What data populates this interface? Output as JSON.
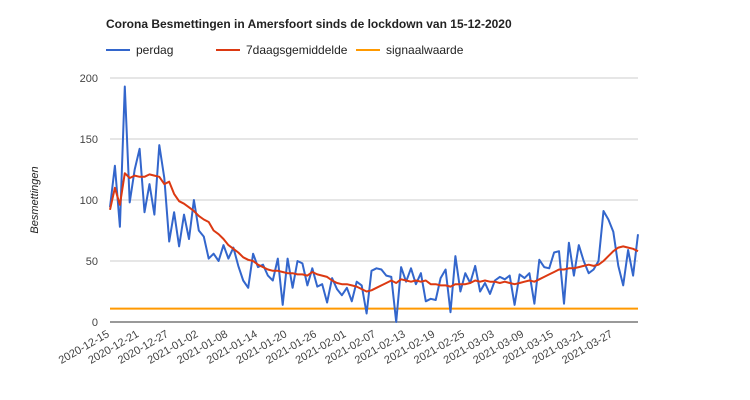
{
  "chart_data": {
    "type": "line",
    "title": "Corona Besmettingen in Amersfoort sinds de lockdown van 15-12-2020",
    "xlabel": "",
    "ylabel": "Besmettingen",
    "ylim": [
      0,
      200
    ],
    "yticks": [
      0,
      50,
      100,
      150,
      200
    ],
    "grid": true,
    "legend_position": "top",
    "start_date": "2020-12-15",
    "x_tick_labels": [
      "2020-12-15",
      "2020-12-21",
      "2020-12-27",
      "2021-01-02",
      "2021-01-08",
      "2021-01-14",
      "2021-01-20",
      "2021-01-26",
      "2021-02-01",
      "2021-02-07",
      "2021-02-13",
      "2021-02-19",
      "2021-02-25",
      "2021-03-03",
      "2021-03-09",
      "2021-03-15",
      "2021-03-21",
      "2021-03-27"
    ],
    "tick_every_days": 6,
    "series": [
      {
        "name": "perdag",
        "color": "#3366cc",
        "values": [
          94,
          128,
          78,
          193,
          98,
          125,
          142,
          90,
          113,
          88,
          145,
          118,
          66,
          90,
          62,
          88,
          68,
          100,
          75,
          70,
          52,
          56,
          50,
          63,
          52,
          61,
          46,
          34,
          28,
          56,
          45,
          47,
          38,
          34,
          52,
          14,
          52,
          28,
          50,
          48,
          30,
          44,
          29,
          31,
          16,
          36,
          27,
          22,
          28,
          17,
          33,
          30,
          7,
          42,
          44,
          43,
          38,
          37,
          0,
          45,
          33,
          44,
          31,
          40,
          17,
          19,
          18,
          36,
          43,
          8,
          54,
          25,
          40,
          32,
          46,
          25,
          32,
          23,
          34,
          37,
          35,
          38,
          14,
          39,
          36,
          40,
          15,
          51,
          45,
          44,
          57,
          58,
          15,
          65,
          38,
          63,
          50,
          40,
          43,
          50,
          91,
          84,
          74,
          46,
          30,
          59,
          38,
          72
        ]
      },
      {
        "name": "7daagsgemiddelde",
        "color": "#dc3912",
        "values": [
          92,
          110,
          96,
          122,
          118,
          120,
          119,
          119,
          121,
          120,
          119,
          113,
          115,
          105,
          99,
          97,
          94,
          91,
          87,
          84,
          82,
          75,
          72,
          68,
          63,
          60,
          57,
          53,
          51,
          50,
          47,
          45,
          43,
          42,
          42,
          41,
          40,
          40,
          39,
          39,
          38,
          41,
          39,
          38,
          37,
          34,
          32,
          31,
          31,
          30,
          29,
          27,
          25,
          26,
          28,
          30,
          32,
          34,
          32,
          35,
          34,
          33,
          34,
          33,
          34,
          31,
          31,
          30,
          30,
          29,
          31,
          31,
          31,
          32,
          34,
          33,
          34,
          33,
          33,
          32,
          33,
          32,
          31,
          32,
          33,
          34,
          33,
          35,
          37,
          39,
          41,
          43,
          43,
          44,
          44,
          45,
          46,
          47,
          46,
          47,
          50,
          54,
          58,
          61,
          62,
          61,
          60,
          58
        ]
      },
      {
        "name": "signaalwaarde",
        "color": "#ff9900",
        "constant": 11
      }
    ]
  }
}
